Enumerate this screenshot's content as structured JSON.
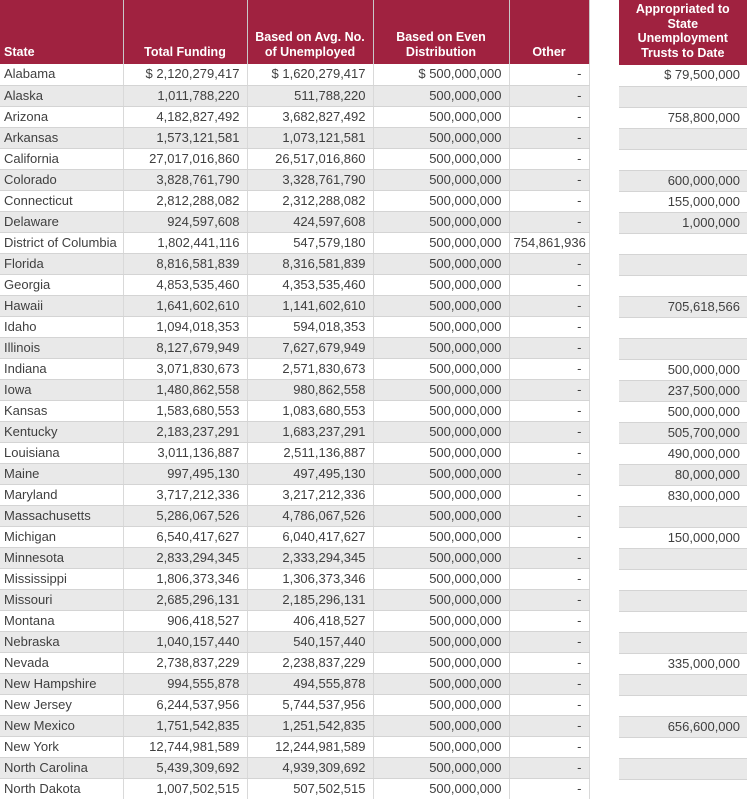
{
  "colors": {
    "header_bg": "#A02240",
    "header_text": "#FFFFFF",
    "row_bg": "#FFFFFF",
    "row_alt_bg": "#E9E9E9",
    "border": "#D4D4D4",
    "cell_text": "#3F3F3F"
  },
  "chart_data": {
    "type": "table",
    "tables": [
      {
        "name": "state-funding-table",
        "columns": [
          "State",
          "Total Funding",
          "Based on Avg. No. of Unemployed",
          "Based on Even Distribution",
          "Other"
        ],
        "column_lines": [
          [
            "State"
          ],
          [
            "Total Funding"
          ],
          [
            "Based on Avg. No.",
            "of Unemployed"
          ],
          [
            "Based on Even",
            "Distribution"
          ],
          [
            "Other"
          ]
        ],
        "rows": [
          [
            "Alabama",
            "$ 2,120,279,417",
            "$ 1,620,279,417",
            "$ 500,000,000",
            "-"
          ],
          [
            "Alaska",
            "1,011,788,220",
            "511,788,220",
            "500,000,000",
            "-"
          ],
          [
            "Arizona",
            "4,182,827,492",
            "3,682,827,492",
            "500,000,000",
            "-"
          ],
          [
            "Arkansas",
            "1,573,121,581",
            "1,073,121,581",
            "500,000,000",
            "-"
          ],
          [
            "California",
            "27,017,016,860",
            "26,517,016,860",
            "500,000,000",
            "-"
          ],
          [
            "Colorado",
            "3,828,761,790",
            "3,328,761,790",
            "500,000,000",
            "-"
          ],
          [
            "Connecticut",
            "2,812,288,082",
            "2,312,288,082",
            "500,000,000",
            "-"
          ],
          [
            "Delaware",
            "924,597,608",
            "424,597,608",
            "500,000,000",
            "-"
          ],
          [
            "District of Columbia",
            "1,802,441,116",
            "547,579,180",
            "500,000,000",
            "754,861,936"
          ],
          [
            "Florida",
            "8,816,581,839",
            "8,316,581,839",
            "500,000,000",
            "-"
          ],
          [
            "Georgia",
            "4,853,535,460",
            "4,353,535,460",
            "500,000,000",
            "-"
          ],
          [
            "Hawaii",
            "1,641,602,610",
            "1,141,602,610",
            "500,000,000",
            "-"
          ],
          [
            "Idaho",
            "1,094,018,353",
            "594,018,353",
            "500,000,000",
            "-"
          ],
          [
            "Illinois",
            "8,127,679,949",
            "7,627,679,949",
            "500,000,000",
            "-"
          ],
          [
            "Indiana",
            "3,071,830,673",
            "2,571,830,673",
            "500,000,000",
            "-"
          ],
          [
            "Iowa",
            "1,480,862,558",
            "980,862,558",
            "500,000,000",
            "-"
          ],
          [
            "Kansas",
            "1,583,680,553",
            "1,083,680,553",
            "500,000,000",
            "-"
          ],
          [
            "Kentucky",
            "2,183,237,291",
            "1,683,237,291",
            "500,000,000",
            "-"
          ],
          [
            "Louisiana",
            "3,011,136,887",
            "2,511,136,887",
            "500,000,000",
            "-"
          ],
          [
            "Maine",
            "997,495,130",
            "497,495,130",
            "500,000,000",
            "-"
          ],
          [
            "Maryland",
            "3,717,212,336",
            "3,217,212,336",
            "500,000,000",
            "-"
          ],
          [
            "Massachusetts",
            "5,286,067,526",
            "4,786,067,526",
            "500,000,000",
            "-"
          ],
          [
            "Michigan",
            "6,540,417,627",
            "6,040,417,627",
            "500,000,000",
            "-"
          ],
          [
            "Minnesota",
            "2,833,294,345",
            "2,333,294,345",
            "500,000,000",
            "-"
          ],
          [
            "Mississippi",
            "1,806,373,346",
            "1,306,373,346",
            "500,000,000",
            "-"
          ],
          [
            "Missouri",
            "2,685,296,131",
            "2,185,296,131",
            "500,000,000",
            "-"
          ],
          [
            "Montana",
            "906,418,527",
            "406,418,527",
            "500,000,000",
            "-"
          ],
          [
            "Nebraska",
            "1,040,157,440",
            "540,157,440",
            "500,000,000",
            "-"
          ],
          [
            "Nevada",
            "2,738,837,229",
            "2,238,837,229",
            "500,000,000",
            "-"
          ],
          [
            "New Hampshire",
            "994,555,878",
            "494,555,878",
            "500,000,000",
            "-"
          ],
          [
            "New Jersey",
            "6,244,537,956",
            "5,744,537,956",
            "500,000,000",
            "-"
          ],
          [
            "New Mexico",
            "1,751,542,835",
            "1,251,542,835",
            "500,000,000",
            "-"
          ],
          [
            "New York",
            "12,744,981,589",
            "12,244,981,589",
            "500,000,000",
            "-"
          ],
          [
            "North Carolina",
            "5,439,309,692",
            "4,939,309,692",
            "500,000,000",
            "-"
          ],
          [
            "North Dakota",
            "1,007,502,515",
            "507,502,515",
            "500,000,000",
            "-"
          ]
        ]
      },
      {
        "name": "appropriated-table",
        "columns": [
          "Appropriated to State Unemployment Trusts to Date"
        ],
        "column_lines": [
          [
            "Appropriated to",
            "State",
            "Unemployment",
            "Trusts to Date"
          ]
        ],
        "rows": [
          [
            "$ 79,500,000"
          ],
          [
            ""
          ],
          [
            "758,800,000"
          ],
          [
            ""
          ],
          [
            ""
          ],
          [
            "600,000,000"
          ],
          [
            "155,000,000"
          ],
          [
            "1,000,000"
          ],
          [
            ""
          ],
          [
            ""
          ],
          [
            ""
          ],
          [
            "705,618,566"
          ],
          [
            ""
          ],
          [
            ""
          ],
          [
            "500,000,000"
          ],
          [
            "237,500,000"
          ],
          [
            "500,000,000"
          ],
          [
            "505,700,000"
          ],
          [
            "490,000,000"
          ],
          [
            "80,000,000"
          ],
          [
            "830,000,000"
          ],
          [
            ""
          ],
          [
            "150,000,000"
          ],
          [
            ""
          ],
          [
            ""
          ],
          [
            ""
          ],
          [
            ""
          ],
          [
            ""
          ],
          [
            "335,000,000"
          ],
          [
            ""
          ],
          [
            ""
          ],
          [
            "656,600,000"
          ],
          [
            ""
          ],
          [
            ""
          ],
          [
            ""
          ]
        ]
      }
    ]
  }
}
